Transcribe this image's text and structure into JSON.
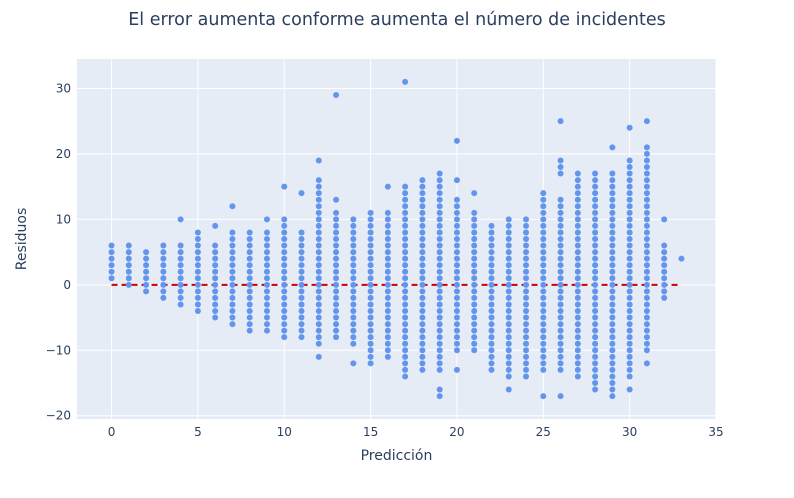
{
  "chart_data": {
    "type": "scatter",
    "title": "El error aumenta conforme aumenta el número de incidentes",
    "xlabel": "Predicción",
    "ylabel": "Residuos",
    "xlim": [
      -2,
      35
    ],
    "ylim": [
      -20.5,
      34.5
    ],
    "xticks": [
      0,
      5,
      10,
      15,
      20,
      25,
      30,
      35
    ],
    "yticks": [
      -20,
      -10,
      0,
      10,
      20,
      30
    ],
    "grid": true,
    "legend": "none",
    "colors": {
      "points": "#6495ed",
      "zero_line": "#cc0000",
      "plot_bg": "#e5ecf6",
      "grid": "#ffffff",
      "text": "#2a3f5f"
    },
    "reference_line": {
      "y": 0,
      "x_range": [
        0,
        33
      ],
      "style": "dashed"
    },
    "columns": [
      {
        "x": 0,
        "min": 1,
        "max": 6,
        "outliers": []
      },
      {
        "x": 1,
        "min": 0,
        "max": 6,
        "outliers": []
      },
      {
        "x": 2,
        "min": -1,
        "max": 5,
        "outliers": []
      },
      {
        "x": 3,
        "min": -2,
        "max": 6,
        "outliers": []
      },
      {
        "x": 4,
        "min": -3,
        "max": 6,
        "outliers": [
          10
        ]
      },
      {
        "x": 5,
        "min": -4,
        "max": 8,
        "outliers": []
      },
      {
        "x": 6,
        "min": -5,
        "max": 6,
        "outliers": [
          9
        ]
      },
      {
        "x": 7,
        "min": -6,
        "max": 8,
        "outliers": [
          12
        ]
      },
      {
        "x": 8,
        "min": -7,
        "max": 8,
        "outliers": []
      },
      {
        "x": 9,
        "min": -7,
        "max": 8,
        "outliers": [
          10
        ]
      },
      {
        "x": 10,
        "min": -8,
        "max": 10,
        "outliers": [
          15
        ]
      },
      {
        "x": 11,
        "min": -8,
        "max": 8,
        "outliers": [
          14
        ]
      },
      {
        "x": 12,
        "min": -9,
        "max": 16,
        "outliers": [
          19,
          -11
        ]
      },
      {
        "x": 13,
        "min": -8,
        "max": 11,
        "outliers": [
          13,
          29
        ]
      },
      {
        "x": 14,
        "min": -9,
        "max": 10,
        "outliers": [
          -12
        ]
      },
      {
        "x": 15,
        "min": -12,
        "max": 11,
        "outliers": []
      },
      {
        "x": 16,
        "min": -11,
        "max": 11,
        "outliers": [
          15
        ]
      },
      {
        "x": 17,
        "min": -14,
        "max": 15,
        "outliers": [
          31
        ]
      },
      {
        "x": 18,
        "min": -13,
        "max": 16,
        "outliers": []
      },
      {
        "x": 19,
        "min": -13,
        "max": 17,
        "outliers": [
          -16,
          -17
        ]
      },
      {
        "x": 20,
        "min": -10,
        "max": 13,
        "outliers": [
          16,
          22,
          -13
        ]
      },
      {
        "x": 21,
        "min": -10,
        "max": 11,
        "outliers": [
          14
        ]
      },
      {
        "x": 22,
        "min": -13,
        "max": 9,
        "outliers": []
      },
      {
        "x": 23,
        "min": -14,
        "max": 10,
        "outliers": [
          -16
        ]
      },
      {
        "x": 24,
        "min": -14,
        "max": 10,
        "outliers": []
      },
      {
        "x": 25,
        "min": -13,
        "max": 14,
        "outliers": [
          -17
        ]
      },
      {
        "x": 26,
        "min": -13,
        "max": 13,
        "outliers": [
          17,
          18,
          19,
          25,
          -17
        ]
      },
      {
        "x": 27,
        "min": -14,
        "max": 17,
        "outliers": []
      },
      {
        "x": 28,
        "min": -16,
        "max": 17,
        "outliers": []
      },
      {
        "x": 29,
        "min": -16,
        "max": 17,
        "outliers": [
          21,
          -17
        ]
      },
      {
        "x": 30,
        "min": -14,
        "max": 19,
        "outliers": [
          24,
          -16
        ]
      },
      {
        "x": 31,
        "min": -10,
        "max": 21,
        "outliers": [
          25,
          -12
        ]
      },
      {
        "x": 32,
        "min": -2,
        "max": 6,
        "outliers": [
          10
        ]
      },
      {
        "x": 33,
        "min": 4,
        "max": 4,
        "outliers": []
      }
    ]
  }
}
